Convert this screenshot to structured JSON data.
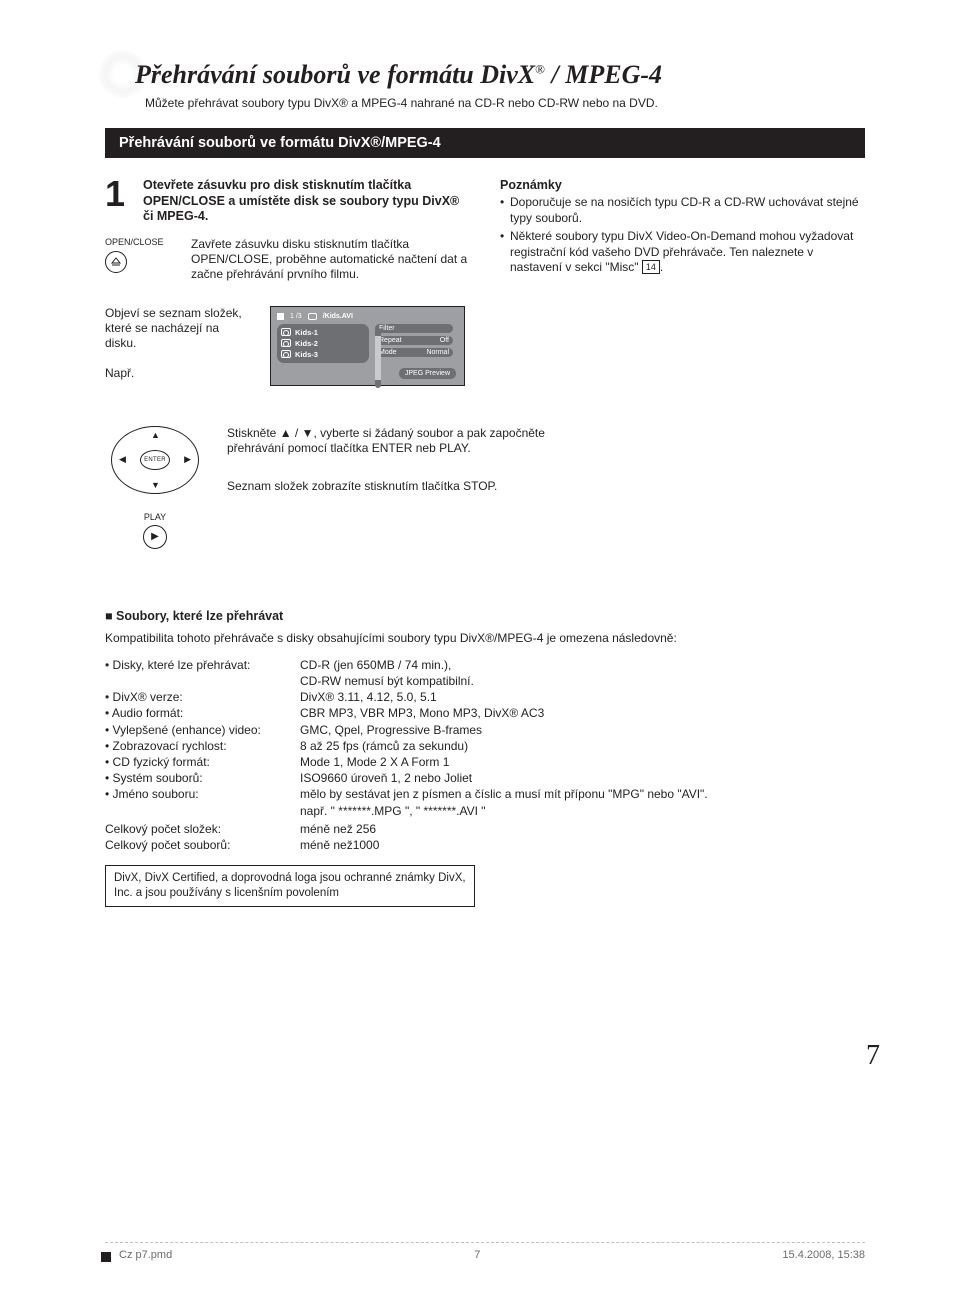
{
  "title": "Přehrávání souborů ve formátu DivX",
  "title_suffix": "/ MPEG-4",
  "intro": "Můžete přehrávat soubory typu DivX® a MPEG-4 nahrané na CD-R nebo CD-RW nebo na DVD.",
  "blackbar": "Přehrávání souborů ve formátu DivX®/MPEG-4",
  "step1_num": "1",
  "step1_txt": "Otevřete zásuvku pro disk stisknutím tlačítka OPEN/CLOSE a umístěte disk se soubory typu DivX® či MPEG-4.",
  "oc_label": "OPEN/CLOSE",
  "oc_txt": "Zavřete zásuvku disku stisknutím tlačítka OPEN/CLOSE, proběhne automatické načtení dat a začne přehrávání prvního filmu.",
  "notes_h": "Poznámky",
  "note1": "Doporučuje se na nosičích typu CD-R a CD-RW uchovávat stejné typy souborů.",
  "note2_a": "Některé soubory typu  DivX Video-On-Demand mohou vyžadovat registrační kód vašeho DVD přehrávače. Ten naleznete v nastavení v sekci \"Misc\" ",
  "note2_ref": "14",
  "note2_b": ".",
  "seznam_txt": "Objeví se seznam složek, které se nacházejí na disku.",
  "napr": "Např.",
  "ui_counter": "1  /3",
  "ui_path": "/Kids.AVI",
  "ui_files": [
    "Kids-1",
    "Kids-2",
    "Kids-3"
  ],
  "ui_opt_filter_l": "Filter",
  "ui_opt_filter_r": "",
  "ui_opt_repeat_l": "Repeat",
  "ui_opt_repeat_r": "Off",
  "ui_opt_mode_l": "Mode",
  "ui_opt_mode_r": "Normal",
  "ui_jpeg": "JPEG Preview",
  "enter_lbl": "ENTER",
  "play_lbl": "PLAY",
  "row3_p1": "Stiskněte ▲ / ▼, vyberte si žádaný soubor a pak započněte přehrávání pomocí tlačítka ENTER neb PLAY.",
  "row3_p2": "Seznam složek zobrazíte stisknutím tlačítka STOP.",
  "soubory_h": "Soubory, které lze přehrávat",
  "soubory_p": "Kompatibilita tohoto přehrávače s disky obsahujícími soubory typu DivX®/MPEG-4 je omezena následovně:",
  "specs": [
    {
      "l": "Disky, které lze přehrávat:",
      "r": "CD-R (jen 650MB / 74 min.),"
    },
    {
      "l": "",
      "r": "CD-RW nemusí být kompatibilní.",
      "nb": true
    },
    {
      "l": "DivX® verze:",
      "r": "DivX® 3.11, 4.12, 5.0, 5.1"
    },
    {
      "l": "Audio formát:",
      "r": "CBR MP3, VBR MP3, Mono MP3, DivX® AC3"
    },
    {
      "l": "Vylepšené (enhance) video:",
      "r": "GMC, Qpel, Progressive B-frames"
    },
    {
      "l": "Zobrazovací rychlost:",
      "r": "8 až 25 fps (rámců za sekundu)"
    },
    {
      "l": "CD fyzický formát:",
      "r": "Mode 1, Mode 2 X A Form 1"
    },
    {
      "l": "Systém souborů:",
      "r": "ISO9660 úroveň 1, 2 nebo Joliet"
    },
    {
      "l": "Jméno souboru:",
      "r": "mělo by sestávat jen z písmen a číslic a musí mít příponu \"MPG\" nebo \"AVI\"."
    },
    {
      "l": "",
      "r": "např. \" *******.MPG \", \" *******.AVI \"",
      "nb": true
    }
  ],
  "tot_folders_l": "Celkový počet složek:",
  "tot_folders_r": "méně než 256",
  "tot_files_l": "Celkový počet souborů:",
  "tot_files_r": "méně než1000",
  "trademark": "DivX, DivX Certified, a doprovodná loga jsou ochranné známky DivX, Inc. a jsou používány s licenšním povolením",
  "pagenum": "7",
  "foot_l": "Cz p7.pmd",
  "foot_c": "7",
  "foot_r": "15.4.2008, 15:38"
}
